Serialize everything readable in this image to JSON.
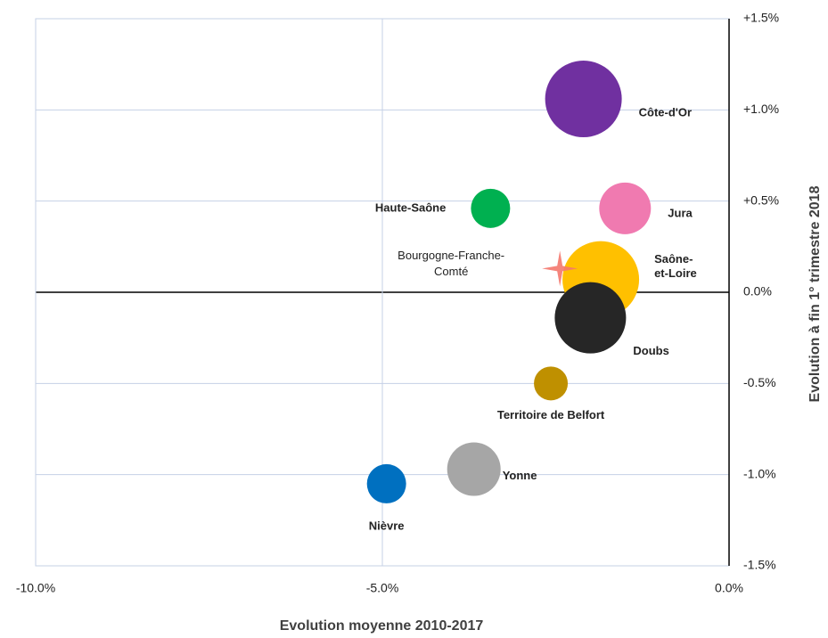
{
  "chart_data": {
    "type": "bubble",
    "x_label": "Evolution moyenne 2010-2017",
    "y_label": "Evolution à fin 1° trimestre 2018",
    "xlim": [
      -10,
      0
    ],
    "xticks": [
      {
        "value": -10,
        "label": "-10.0%"
      },
      {
        "value": -5,
        "label": "-5.0%"
      },
      {
        "value": 0,
        "label": "0.0%"
      }
    ],
    "ylim": [
      -1.5,
      1.5
    ],
    "yticks": [
      {
        "value": 1.5,
        "label": "+1.5%"
      },
      {
        "value": 1,
        "label": "+1.0%"
      },
      {
        "value": 0.5,
        "label": "+0.5%"
      },
      {
        "value": 0,
        "label": "0.0%"
      },
      {
        "value": -0.5,
        "label": "-0.5%"
      },
      {
        "value": -1,
        "label": "-1.0%"
      },
      {
        "value": -1.5,
        "label": "-1.5%"
      }
    ],
    "grid": true,
    "points": [
      {
        "name": [
          "Côte-d'Or"
        ],
        "color": "#7030a0",
        "x": -2.1,
        "y": 1.06,
        "size": 1849
      },
      {
        "name": [
          "Jura"
        ],
        "color": "#f07ab0",
        "x": -1.5,
        "y": 0.46,
        "size": 841
      },
      {
        "name": [
          "Haute-Saône"
        ],
        "color": "#00b050",
        "x": -3.44,
        "y": 0.46,
        "size": 484
      },
      {
        "name": [
          "Saône-",
          "et-Loire"
        ],
        "color": "#ffc000",
        "x": -1.85,
        "y": 0.07,
        "size": 1849
      },
      {
        "name": [
          "Doubs"
        ],
        "color": "#262626",
        "x": -2.0,
        "y": -0.14,
        "size": 1600
      },
      {
        "name": [
          "Territoire de Belfort"
        ],
        "color": "#bf9000",
        "x": -2.57,
        "y": -0.5,
        "size": 361
      },
      {
        "name": [
          "Yonne"
        ],
        "color": "#a6a6a6",
        "x": -3.68,
        "y": -0.97,
        "size": 900
      },
      {
        "name": [
          "Nièvre"
        ],
        "color": "#0070c0",
        "x": -4.94,
        "y": -1.05,
        "size": 484
      }
    ],
    "reference": {
      "name": [
        "Bourgogne-Franche-",
        "Comté"
      ],
      "color": "#f4786e",
      "x": -2.44,
      "y": 0.13
    }
  }
}
